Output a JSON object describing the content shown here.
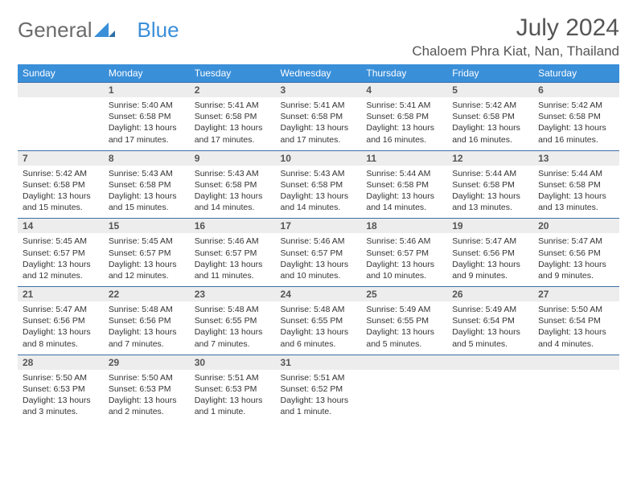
{
  "logo": {
    "part1": "General",
    "part2": "Blue"
  },
  "title": "July 2024",
  "location": "Chaloem Phra Kiat, Nan, Thailand",
  "colors": {
    "header_bg": "#3a8fd9",
    "header_text": "#ffffff",
    "daynum_bg": "#ededed",
    "row_border": "#3a6fa8",
    "logo_gray": "#6b6b6b",
    "logo_blue": "#3a8fd9",
    "body_text": "#333333"
  },
  "weekdays": [
    "Sunday",
    "Monday",
    "Tuesday",
    "Wednesday",
    "Thursday",
    "Friday",
    "Saturday"
  ],
  "weeks": [
    {
      "nums": [
        "",
        "1",
        "2",
        "3",
        "4",
        "5",
        "6"
      ],
      "cells": [
        "",
        "Sunrise: 5:40 AM\nSunset: 6:58 PM\nDaylight: 13 hours and 17 minutes.",
        "Sunrise: 5:41 AM\nSunset: 6:58 PM\nDaylight: 13 hours and 17 minutes.",
        "Sunrise: 5:41 AM\nSunset: 6:58 PM\nDaylight: 13 hours and 17 minutes.",
        "Sunrise: 5:41 AM\nSunset: 6:58 PM\nDaylight: 13 hours and 16 minutes.",
        "Sunrise: 5:42 AM\nSunset: 6:58 PM\nDaylight: 13 hours and 16 minutes.",
        "Sunrise: 5:42 AM\nSunset: 6:58 PM\nDaylight: 13 hours and 16 minutes."
      ]
    },
    {
      "nums": [
        "7",
        "8",
        "9",
        "10",
        "11",
        "12",
        "13"
      ],
      "cells": [
        "Sunrise: 5:42 AM\nSunset: 6:58 PM\nDaylight: 13 hours and 15 minutes.",
        "Sunrise: 5:43 AM\nSunset: 6:58 PM\nDaylight: 13 hours and 15 minutes.",
        "Sunrise: 5:43 AM\nSunset: 6:58 PM\nDaylight: 13 hours and 14 minutes.",
        "Sunrise: 5:43 AM\nSunset: 6:58 PM\nDaylight: 13 hours and 14 minutes.",
        "Sunrise: 5:44 AM\nSunset: 6:58 PM\nDaylight: 13 hours and 14 minutes.",
        "Sunrise: 5:44 AM\nSunset: 6:58 PM\nDaylight: 13 hours and 13 minutes.",
        "Sunrise: 5:44 AM\nSunset: 6:58 PM\nDaylight: 13 hours and 13 minutes."
      ]
    },
    {
      "nums": [
        "14",
        "15",
        "16",
        "17",
        "18",
        "19",
        "20"
      ],
      "cells": [
        "Sunrise: 5:45 AM\nSunset: 6:57 PM\nDaylight: 13 hours and 12 minutes.",
        "Sunrise: 5:45 AM\nSunset: 6:57 PM\nDaylight: 13 hours and 12 minutes.",
        "Sunrise: 5:46 AM\nSunset: 6:57 PM\nDaylight: 13 hours and 11 minutes.",
        "Sunrise: 5:46 AM\nSunset: 6:57 PM\nDaylight: 13 hours and 10 minutes.",
        "Sunrise: 5:46 AM\nSunset: 6:57 PM\nDaylight: 13 hours and 10 minutes.",
        "Sunrise: 5:47 AM\nSunset: 6:56 PM\nDaylight: 13 hours and 9 minutes.",
        "Sunrise: 5:47 AM\nSunset: 6:56 PM\nDaylight: 13 hours and 9 minutes."
      ]
    },
    {
      "nums": [
        "21",
        "22",
        "23",
        "24",
        "25",
        "26",
        "27"
      ],
      "cells": [
        "Sunrise: 5:47 AM\nSunset: 6:56 PM\nDaylight: 13 hours and 8 minutes.",
        "Sunrise: 5:48 AM\nSunset: 6:56 PM\nDaylight: 13 hours and 7 minutes.",
        "Sunrise: 5:48 AM\nSunset: 6:55 PM\nDaylight: 13 hours and 7 minutes.",
        "Sunrise: 5:48 AM\nSunset: 6:55 PM\nDaylight: 13 hours and 6 minutes.",
        "Sunrise: 5:49 AM\nSunset: 6:55 PM\nDaylight: 13 hours and 5 minutes.",
        "Sunrise: 5:49 AM\nSunset: 6:54 PM\nDaylight: 13 hours and 5 minutes.",
        "Sunrise: 5:50 AM\nSunset: 6:54 PM\nDaylight: 13 hours and 4 minutes."
      ]
    },
    {
      "nums": [
        "28",
        "29",
        "30",
        "31",
        "",
        "",
        ""
      ],
      "cells": [
        "Sunrise: 5:50 AM\nSunset: 6:53 PM\nDaylight: 13 hours and 3 minutes.",
        "Sunrise: 5:50 AM\nSunset: 6:53 PM\nDaylight: 13 hours and 2 minutes.",
        "Sunrise: 5:51 AM\nSunset: 6:53 PM\nDaylight: 13 hours and 1 minute.",
        "Sunrise: 5:51 AM\nSunset: 6:52 PM\nDaylight: 13 hours and 1 minute.",
        "",
        "",
        ""
      ]
    }
  ]
}
